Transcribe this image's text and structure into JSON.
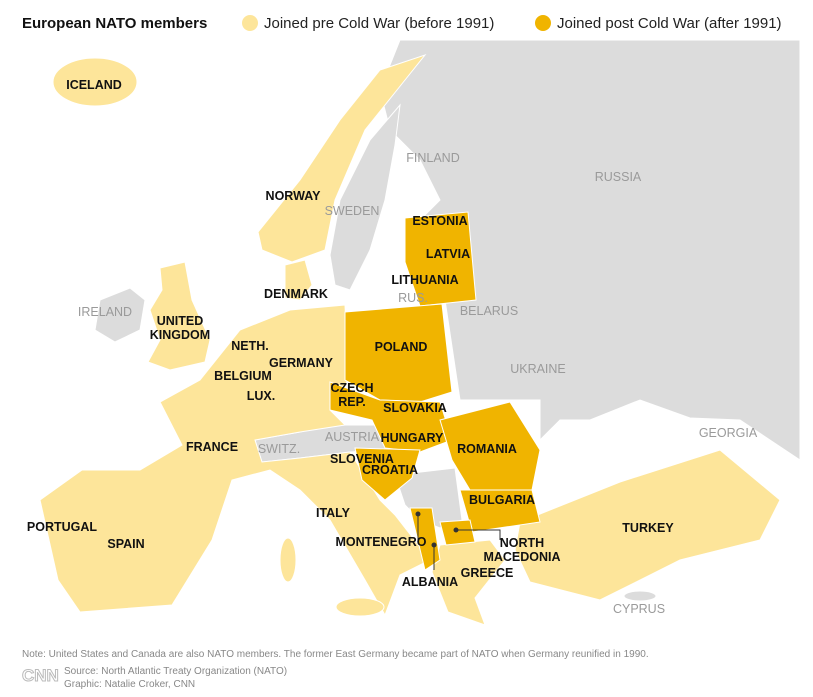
{
  "header": {
    "title": "European NATO members"
  },
  "legend": {
    "items": [
      {
        "label": "Joined pre Cold War (before 1991)",
        "color": "#fde59a"
      },
      {
        "label": "Joined post Cold War (after 1991)",
        "color": "#f0b400"
      }
    ]
  },
  "labels": [
    {
      "lines": [
        "ICELAND"
      ],
      "group": "pre"
    },
    {
      "lines": [
        "NORWAY"
      ],
      "group": "pre"
    },
    {
      "lines": [
        "SWEDEN"
      ],
      "group": "non"
    },
    {
      "lines": [
        "FINLAND"
      ],
      "group": "non"
    },
    {
      "lines": [
        "RUSSIA"
      ],
      "group": "non"
    },
    {
      "lines": [
        "ESTONIA"
      ],
      "group": "post"
    },
    {
      "lines": [
        "LATVIA"
      ],
      "group": "post"
    },
    {
      "lines": [
        "LITHUANIA"
      ],
      "group": "post"
    },
    {
      "lines": [
        "RUS."
      ],
      "group": "non"
    },
    {
      "lines": [
        "BELARUS"
      ],
      "group": "non"
    },
    {
      "lines": [
        "DENMARK"
      ],
      "group": "pre"
    },
    {
      "lines": [
        "IRELAND"
      ],
      "group": "non"
    },
    {
      "lines": [
        "UNITED",
        "KINGDOM"
      ],
      "group": "pre"
    },
    {
      "lines": [
        "NETH."
      ],
      "group": "pre"
    },
    {
      "lines": [
        "GERMANY"
      ],
      "group": "pre"
    },
    {
      "lines": [
        "POLAND"
      ],
      "group": "post"
    },
    {
      "lines": [
        "UKRAINE"
      ],
      "group": "non"
    },
    {
      "lines": [
        "BELGIUM"
      ],
      "group": "pre"
    },
    {
      "lines": [
        "LUX."
      ],
      "group": "pre"
    },
    {
      "lines": [
        "CZECH",
        "REP."
      ],
      "group": "post"
    },
    {
      "lines": [
        "SLOVAKIA"
      ],
      "group": "post"
    },
    {
      "lines": [
        "AUSTRIA"
      ],
      "group": "non"
    },
    {
      "lines": [
        "HUNGARY"
      ],
      "group": "post"
    },
    {
      "lines": [
        "ROMANIA"
      ],
      "group": "post"
    },
    {
      "lines": [
        "GEORGIA"
      ],
      "group": "non"
    },
    {
      "lines": [
        "FRANCE"
      ],
      "group": "pre"
    },
    {
      "lines": [
        "SWITZ."
      ],
      "group": "non"
    },
    {
      "lines": [
        "SLOVENIA"
      ],
      "group": "post"
    },
    {
      "lines": [
        "CROATIA"
      ],
      "group": "post"
    },
    {
      "lines": [
        "BULGARIA"
      ],
      "group": "post"
    },
    {
      "lines": [
        "ITALY"
      ],
      "group": "pre"
    },
    {
      "lines": [
        "TURKEY"
      ],
      "group": "pre"
    },
    {
      "lines": [
        "PORTUGAL"
      ],
      "group": "pre"
    },
    {
      "lines": [
        "SPAIN"
      ],
      "group": "pre"
    },
    {
      "lines": [
        "MONTENEGRO"
      ],
      "group": "post"
    },
    {
      "lines": [
        "NORTH",
        "MACEDONIA"
      ],
      "group": "post"
    },
    {
      "lines": [
        "GREECE"
      ],
      "group": "pre"
    },
    {
      "lines": [
        "ALBANIA"
      ],
      "group": "post"
    },
    {
      "lines": [
        "CYPRUS"
      ],
      "group": "non"
    }
  ],
  "footer": {
    "note": "Note: United States and Canada are also NATO members. The former East Germany became part of NATO when Germany reunified in 1990.",
    "logo": "CNN",
    "source": "Source: North Atlantic Treaty Organization (NATO)",
    "credit": "Graphic: Natalie Croker, CNN"
  }
}
